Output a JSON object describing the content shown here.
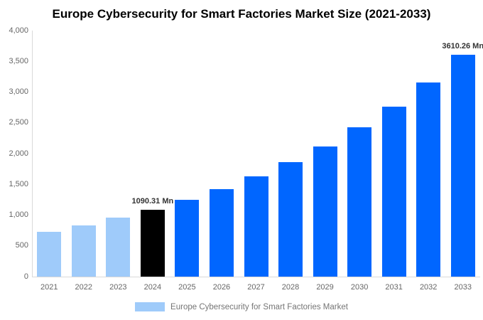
{
  "title": "Europe Cybersecurity for Smart Factories Market Size (2021-2033)",
  "legend": {
    "label": "Europe Cybersecurity for Smart Factories Market",
    "swatch_color": "#9FCBFA"
  },
  "chart_data": {
    "type": "bar",
    "title": "Europe Cybersecurity for Smart Factories Market Size (2021-2033)",
    "unit": "Mn",
    "categories": [
      "2021",
      "2022",
      "2023",
      "2024",
      "2025",
      "2026",
      "2027",
      "2028",
      "2029",
      "2030",
      "2031",
      "2032",
      "2033"
    ],
    "values": [
      731,
      835,
      954,
      1090.31,
      1245,
      1423,
      1625,
      1857,
      2121,
      2423,
      2767,
      3161,
      3610.26
    ],
    "bar_colors": [
      "#9FCBFA",
      "#9FCBFA",
      "#9FCBFA",
      "#000000",
      "#0066FF",
      "#0066FF",
      "#0066FF",
      "#0066FF",
      "#0066FF",
      "#0066FF",
      "#0066FF",
      "#0066FF",
      "#0066FF"
    ],
    "annotations": [
      {
        "category": "2024",
        "text": "1090.31 Mn"
      },
      {
        "category": "2033",
        "text": "3610.26 Mn"
      }
    ],
    "xlabel": "",
    "ylabel": "",
    "ylim": [
      0,
      4000
    ],
    "yticks": [
      {
        "value": 0,
        "label": "0"
      },
      {
        "value": 500,
        "label": "500"
      },
      {
        "value": 1000,
        "label": "1,000"
      },
      {
        "value": 1500,
        "label": "1,500"
      },
      {
        "value": 2000,
        "label": "2,000"
      },
      {
        "value": 2500,
        "label": "2,500"
      },
      {
        "value": 3000,
        "label": "3,000"
      },
      {
        "value": 3500,
        "label": "3,500"
      },
      {
        "value": 4000,
        "label": "4,000"
      }
    ],
    "grid": false,
    "legend_position": "bottom"
  }
}
